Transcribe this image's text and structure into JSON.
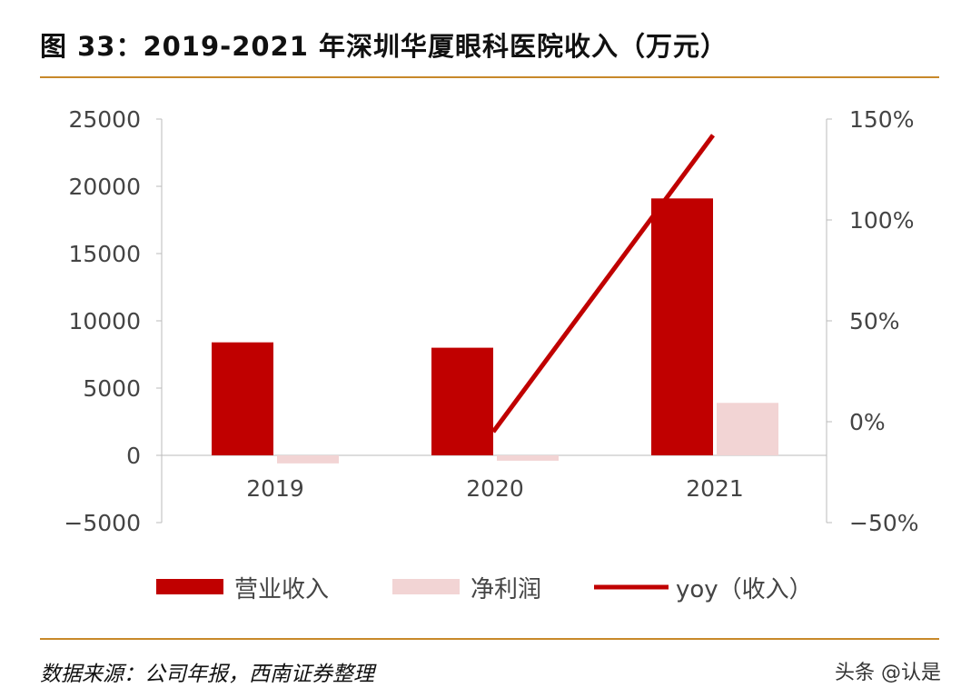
{
  "header": {
    "title": "图 33：2019-2021 年深圳华厦眼科医院收入（万元）"
  },
  "footer": {
    "source": "数据来源：公司年报，西南证券整理",
    "watermark": "头条 @认是"
  },
  "chart_data": {
    "type": "bar",
    "categories": [
      "2019",
      "2020",
      "2021"
    ],
    "series": [
      {
        "name": "营业收入",
        "kind": "bar",
        "axis": "left",
        "color": "#c00000",
        "values": [
          8400,
          8000,
          19100
        ]
      },
      {
        "name": "净利润",
        "kind": "bar",
        "axis": "left",
        "color": "#f2d4d4",
        "values": [
          -600,
          -400,
          3900
        ]
      },
      {
        "name": "yoy（收入）",
        "kind": "line",
        "axis": "right",
        "color": "#c00000",
        "values": [
          null,
          -5,
          142
        ]
      }
    ],
    "left_axis": {
      "ylim": [
        -5000,
        25000
      ],
      "ticks": [
        "-5000",
        "0",
        "5000",
        "10000",
        "15000",
        "20000",
        "25000"
      ]
    },
    "right_axis": {
      "ylim": [
        -50,
        150
      ],
      "ticks": [
        "-50%",
        "0%",
        "50%",
        "100%",
        "150%"
      ]
    },
    "grid": false,
    "legend": "bottom"
  }
}
